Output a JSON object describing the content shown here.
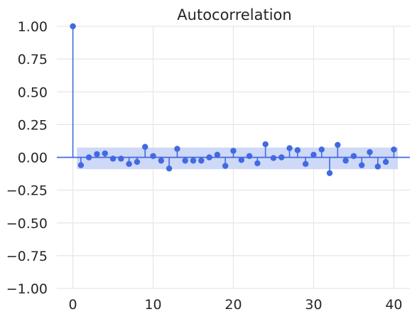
{
  "chart_data": {
    "type": "stem",
    "title": "Autocorrelation",
    "xlabel": "",
    "ylabel": "",
    "x_ticks": [
      0,
      10,
      20,
      30,
      40
    ],
    "y_ticks": [
      "1.00",
      "0.75",
      "0.50",
      "0.25",
      "0.00",
      "−0.25",
      "−0.50",
      "−0.75",
      "−1.00"
    ],
    "xlim": [
      -2,
      42
    ],
    "ylim": [
      -1.0,
      1.0
    ],
    "grid": true,
    "colors": {
      "series": "#4169e1",
      "band": "#ced8f7",
      "grid": "#e6e6e6",
      "text": "#262626"
    },
    "lags": [
      0,
      1,
      2,
      3,
      4,
      5,
      6,
      7,
      8,
      9,
      10,
      11,
      12,
      13,
      14,
      15,
      16,
      17,
      18,
      19,
      20,
      21,
      22,
      23,
      24,
      25,
      26,
      27,
      28,
      29,
      30,
      31,
      32,
      33,
      34,
      35,
      36,
      37,
      38,
      39,
      40
    ],
    "values": [
      1.0,
      -0.06,
      0.0,
      0.025,
      0.03,
      -0.01,
      -0.01,
      -0.05,
      -0.035,
      0.08,
      0.01,
      -0.025,
      -0.085,
      0.065,
      -0.025,
      -0.025,
      -0.025,
      0.0,
      0.02,
      -0.065,
      0.05,
      -0.02,
      0.01,
      -0.045,
      0.1,
      -0.005,
      0.0,
      0.07,
      0.055,
      -0.05,
      0.02,
      0.06,
      -0.12,
      0.095,
      -0.025,
      0.01,
      -0.06,
      0.04,
      -0.07,
      -0.035,
      0.06
    ],
    "confidence_band": {
      "from_lag": 0.5,
      "to_lag": 40.5,
      "upper": 0.075,
      "lower": -0.09
    }
  }
}
